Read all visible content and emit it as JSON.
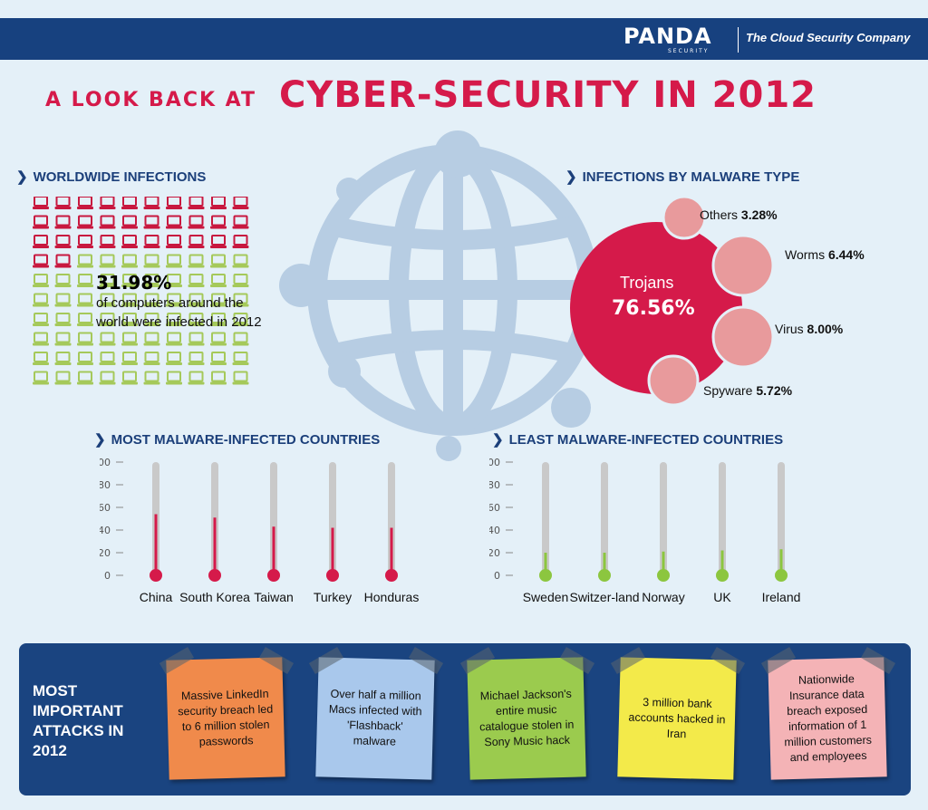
{
  "header": {
    "logo": "PANDA",
    "logo_sub": "SECURITY",
    "tagline": "The Cloud Security Company"
  },
  "title": {
    "small": "A LOOK BACK AT",
    "big": "CYBER-SECURITY IN 2012"
  },
  "worldwide": {
    "heading": "WORLDWIDE INFECTIONS",
    "percent": "31.98%",
    "text": "of computers around the world were infected in 2012",
    "infected_fraction": 0.32,
    "colors": {
      "infected": "#c8183f",
      "clean": "#a5c95a"
    }
  },
  "malware_type": {
    "heading": "INFECTIONS BY MALWARE TYPE",
    "main_label": "Trojans",
    "main_value": "76.56%",
    "others": [
      {
        "name": "Others",
        "value": "3.28%"
      },
      {
        "name": "Worms",
        "value": "6.44%"
      },
      {
        "name": "Virus",
        "value": "8.00%"
      },
      {
        "name": "Spyware",
        "value": "5.72%"
      }
    ],
    "colors": {
      "main": "#d51a4a",
      "minor": "#e89a9c"
    }
  },
  "chart_data": [
    {
      "type": "bar",
      "title": "MOST MALWARE-INFECTED COUNTRIES",
      "categories": [
        "China",
        "South Korea",
        "Taiwan",
        "Turkey",
        "Honduras"
      ],
      "values": [
        54,
        51,
        43,
        42,
        42
      ],
      "ylim": [
        0,
        100
      ],
      "yticks": [
        0,
        20,
        40,
        60,
        80,
        100
      ],
      "color": "#d51a4a"
    },
    {
      "type": "bar",
      "title": "LEAST MALWARE-INFECTED COUNTRIES",
      "categories": [
        "Sweden",
        "Switzer-land",
        "Norway",
        "UK",
        "Ireland"
      ],
      "values": [
        20,
        20,
        21,
        22,
        23
      ],
      "ylim": [
        0,
        100
      ],
      "yticks": [
        0,
        20,
        40,
        60,
        80,
        100
      ],
      "color": "#8cc63f"
    }
  ],
  "attacks": {
    "heading": "MOST IMPORTANT ATTACKS IN 2012",
    "notes": [
      {
        "text": "Massive LinkedIn security breach led to 6 million stolen passwords",
        "color": "#f08a4b"
      },
      {
        "text": "Over half a million Macs infected with 'Flashback' malware",
        "color": "#a9c8ec"
      },
      {
        "text": "Michael Jackson's entire music catalogue stolen in Sony Music hack",
        "color": "#9bcb4e"
      },
      {
        "text": "3 million bank accounts hacked in Iran",
        "color": "#f3ea4a"
      },
      {
        "text": "Nationwide Insurance data breach exposed information of 1 million customers and employees",
        "color": "#f4b3b6"
      }
    ]
  }
}
